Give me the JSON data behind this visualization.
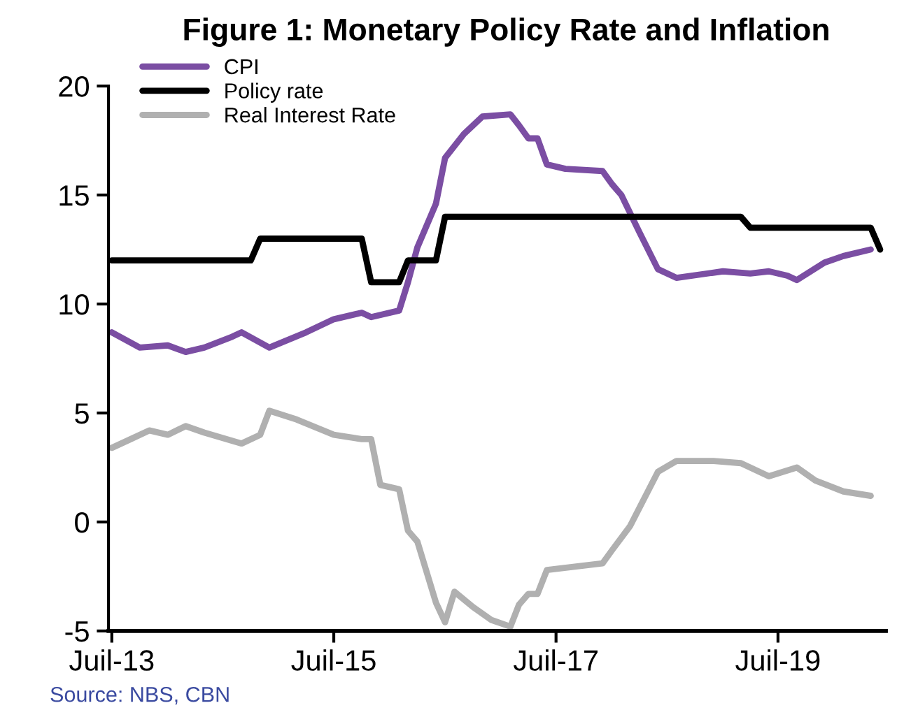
{
  "chart_data": {
    "type": "line",
    "title": "Figure 1: Monetary Policy Rate and Inflation",
    "series": [
      {
        "name": "CPI",
        "color": "#7b4ea3",
        "x": [
          "2013-07",
          "2013-10",
          "2014-01",
          "2014-03",
          "2014-05",
          "2014-08",
          "2014-09",
          "2014-12",
          "2015-04",
          "2015-07",
          "2015-10",
          "2015-11",
          "2016-02",
          "2016-03",
          "2016-04",
          "2016-06",
          "2016-07",
          "2016-09",
          "2016-11",
          "2017-02",
          "2017-03",
          "2017-04",
          "2017-05",
          "2017-06",
          "2017-08",
          "2017-12",
          "2018-01",
          "2018-02",
          "2018-04",
          "2018-06",
          "2018-08",
          "2019-01",
          "2019-04",
          "2019-06",
          "2019-08",
          "2019-09",
          "2019-12",
          "2020-02",
          "2020-05"
        ],
        "values": [
          8.7,
          8.0,
          8.1,
          7.8,
          8.0,
          8.5,
          8.7,
          8.0,
          8.7,
          9.3,
          9.6,
          9.4,
          9.7,
          11.0,
          12.6,
          14.6,
          16.7,
          17.8,
          18.6,
          18.7,
          18.2,
          17.6,
          17.6,
          16.4,
          16.2,
          16.1,
          15.5,
          15.0,
          13.3,
          11.6,
          11.2,
          11.5,
          11.4,
          11.5,
          11.3,
          11.1,
          11.9,
          12.2,
          12.5
        ]
      },
      {
        "name": "Policy rate",
        "color": "#000000",
        "x": [
          "2013-07",
          "2014-10",
          "2014-11",
          "2015-10",
          "2015-11",
          "2016-02",
          "2016-03",
          "2016-06",
          "2016-07",
          "2019-03",
          "2019-04",
          "2020-05",
          "2020-06"
        ],
        "values": [
          12,
          12,
          13,
          13,
          11,
          11,
          12,
          12,
          14,
          14,
          13.5,
          13.5,
          12.5
        ]
      },
      {
        "name": "Real Interest Rate",
        "color": "#b0b0b0",
        "x": [
          "2013-07",
          "2013-09",
          "2013-11",
          "2014-01",
          "2014-03",
          "2014-05",
          "2014-09",
          "2014-11",
          "2014-12",
          "2015-03",
          "2015-07",
          "2015-10",
          "2015-11",
          "2015-12",
          "2016-02",
          "2016-03",
          "2016-04",
          "2016-06",
          "2016-07",
          "2016-08",
          "2016-10",
          "2016-12",
          "2017-02",
          "2017-03",
          "2017-04",
          "2017-05",
          "2017-06",
          "2017-12",
          "2018-01",
          "2018-03",
          "2018-06",
          "2018-08",
          "2018-12",
          "2019-03",
          "2019-06",
          "2019-09",
          "2019-11",
          "2020-02",
          "2020-05"
        ],
        "values": [
          3.4,
          3.8,
          4.2,
          4.0,
          4.4,
          4.1,
          3.6,
          4.0,
          5.1,
          4.7,
          4.0,
          3.8,
          3.8,
          1.7,
          1.5,
          -0.4,
          -0.9,
          -3.7,
          -4.6,
          -3.2,
          -3.9,
          -4.5,
          -4.8,
          -3.8,
          -3.3,
          -3.3,
          -2.2,
          -1.9,
          -1.3,
          -0.2,
          2.3,
          2.8,
          2.8,
          2.7,
          2.1,
          2.5,
          1.9,
          1.4,
          1.2
        ]
      }
    ],
    "xlim": [
      "2013-06-20",
      "2020-06-20"
    ],
    "xticks": [
      {
        "value": "2013-07",
        "label": "Juil-13"
      },
      {
        "value": "2015-07",
        "label": "Juil-15"
      },
      {
        "value": "2017-07",
        "label": "Juil-17"
      },
      {
        "value": "2019-07",
        "label": "Juil-19"
      }
    ],
    "ylim": [
      -5,
      20
    ],
    "yticks": [
      -5,
      0,
      5,
      10,
      15,
      20
    ],
    "grid": false,
    "legend": "top left",
    "marker": "none",
    "line_style": "solid",
    "annotations": [
      "Source: NBS, CBN"
    ]
  }
}
